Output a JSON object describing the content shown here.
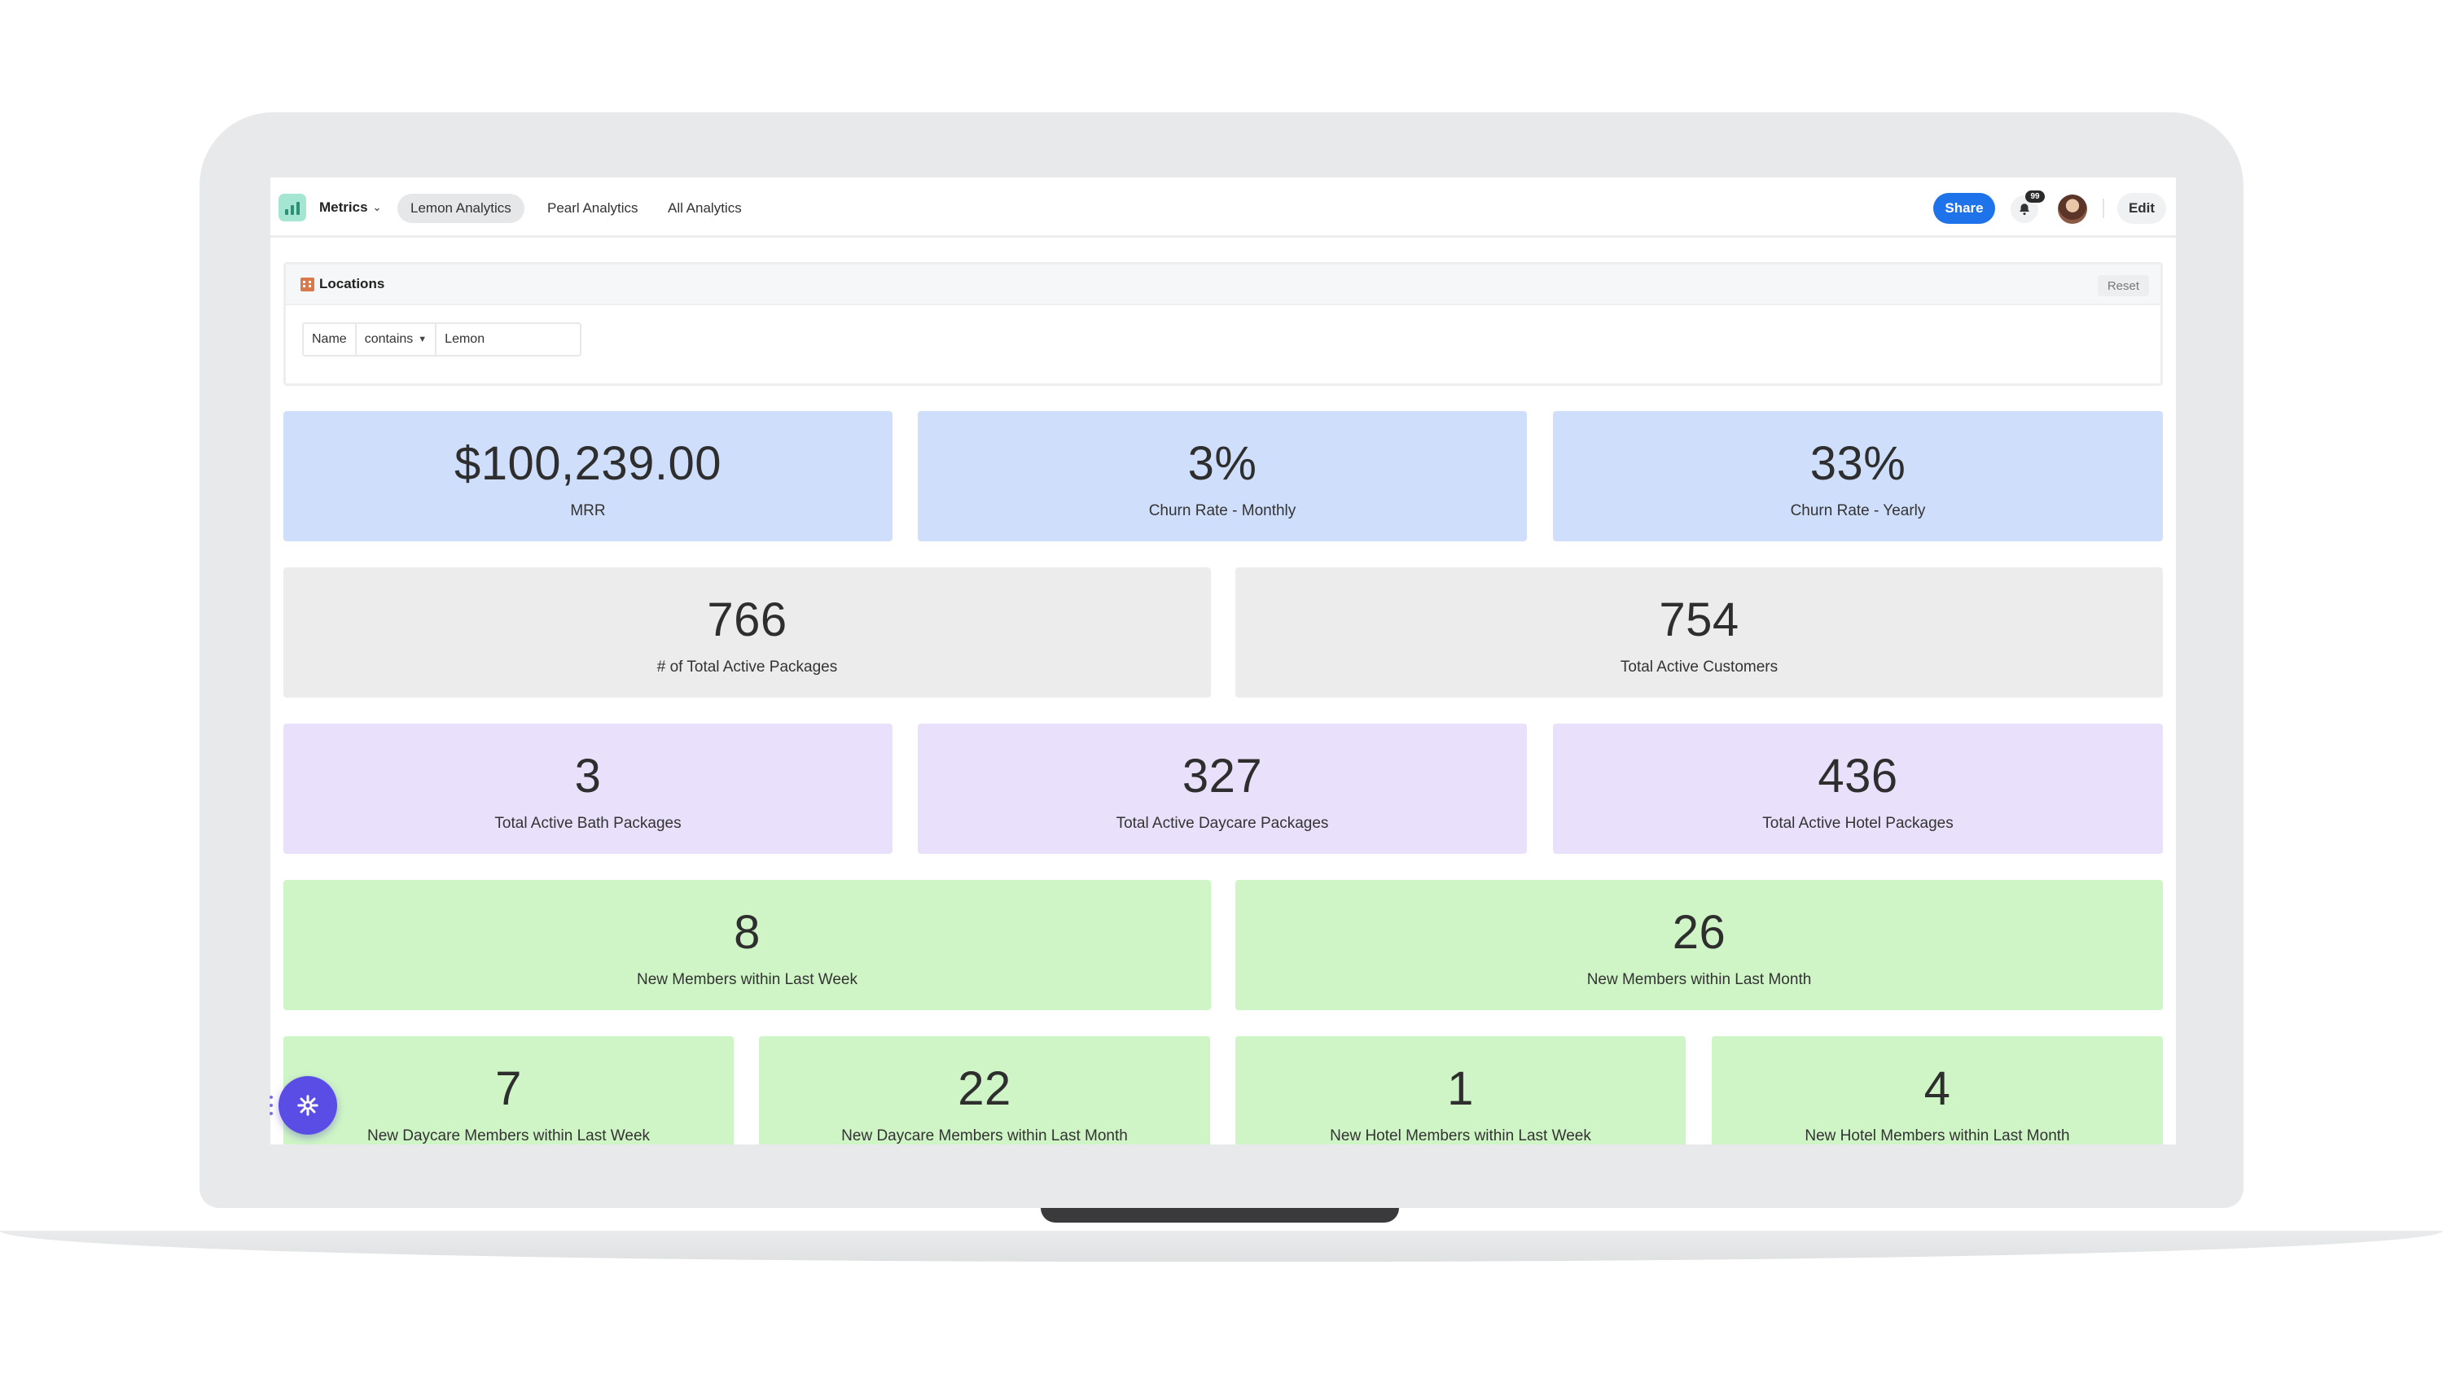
{
  "topbar": {
    "metrics_label": "Metrics",
    "tabs": [
      {
        "label": "Lemon Analytics",
        "active": true
      },
      {
        "label": "Pearl Analytics",
        "active": false
      },
      {
        "label": "All Analytics",
        "active": false
      }
    ],
    "share_label": "Share",
    "notification_count": "99",
    "edit_label": "Edit",
    "accent_color": "#1f73ea"
  },
  "filters": {
    "title": "Locations",
    "reset_label": "Reset",
    "field": "Name",
    "operator": "contains",
    "value": "Lemon"
  },
  "metrics": {
    "mrr": {
      "value": "$100,239.00",
      "label": "MRR"
    },
    "churn_monthly": {
      "value": "3%",
      "label": "Churn Rate - Monthly"
    },
    "churn_yearly": {
      "value": "33%",
      "label": "Churn Rate - Yearly"
    },
    "total_packages": {
      "value": "766",
      "label": "# of Total Active Packages"
    },
    "total_customers": {
      "value": "754",
      "label": "Total Active Customers"
    },
    "bath_packages": {
      "value": "3",
      "label": "Total Active Bath Packages"
    },
    "daycare_packages": {
      "value": "327",
      "label": "Total Active Daycare Packages"
    },
    "hotel_packages": {
      "value": "436",
      "label": "Total Active Hotel Packages"
    },
    "new_week": {
      "value": "8",
      "label": "New Members within Last Week"
    },
    "new_month": {
      "value": "26",
      "label": "New Members within Last Month"
    },
    "daycare_week": {
      "value": "7",
      "label": "New Daycare Members within Last Week"
    },
    "daycare_month": {
      "value": "22",
      "label": "New Daycare Members within Last Month"
    },
    "hotel_week": {
      "value": "1",
      "label": "New Hotel Members within Last Week"
    },
    "hotel_month": {
      "value": "4",
      "label": "New Hotel Members within Last Month"
    }
  },
  "colors": {
    "card_blue": "#cfdffb",
    "card_grey": "#ececec",
    "card_purple": "#e9e1fb",
    "card_green": "#cff5c6"
  }
}
